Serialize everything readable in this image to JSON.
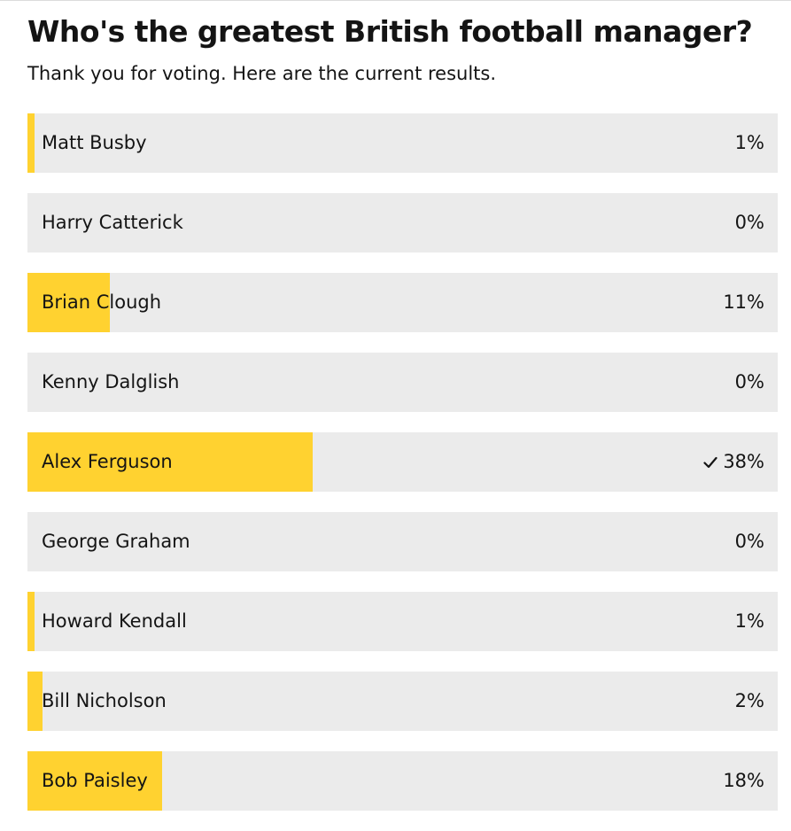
{
  "poll": {
    "title": "Who's the greatest British football manager?",
    "subtitle": "Thank you for voting. Here are the current results.",
    "accent_color": "#ffd230",
    "track_color": "#ebebeb",
    "results": [
      {
        "name": "Matt Busby",
        "percent_label": "1%",
        "percent": 1,
        "selected": false
      },
      {
        "name": "Harry Catterick",
        "percent_label": "0%",
        "percent": 0,
        "selected": false
      },
      {
        "name": "Brian Clough",
        "percent_label": "11%",
        "percent": 11,
        "selected": false
      },
      {
        "name": "Kenny Dalglish",
        "percent_label": "0%",
        "percent": 0,
        "selected": false
      },
      {
        "name": "Alex Ferguson",
        "percent_label": "38%",
        "percent": 38,
        "selected": true,
        "icon": "checkmark-icon"
      },
      {
        "name": "George Graham",
        "percent_label": "0%",
        "percent": 0,
        "selected": false
      },
      {
        "name": "Howard Kendall",
        "percent_label": "1%",
        "percent": 1,
        "selected": false
      },
      {
        "name": "Bill Nicholson",
        "percent_label": "2%",
        "percent": 2,
        "selected": false
      },
      {
        "name": "Bob Paisley",
        "percent_label": "18%",
        "percent": 18,
        "selected": false
      }
    ]
  }
}
